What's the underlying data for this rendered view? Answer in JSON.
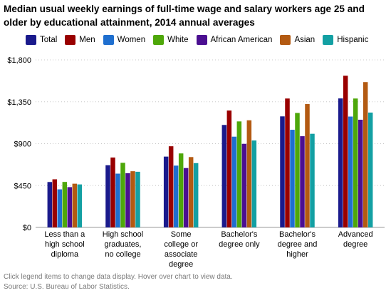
{
  "title": "Median usual weekly earnings of full-time wage and salary workers age 25 and older by educational attainment, 2014 annual averages",
  "chart_data": {
    "type": "bar",
    "title": "Median usual weekly earnings of full-time wage and salary workers age 25 and older by educational attainment, 2014 annual averages",
    "xlabel": "",
    "ylabel": "",
    "ylim": [
      0,
      1800
    ],
    "yticks": [
      0,
      450,
      900,
      1350,
      1800
    ],
    "ytick_labels": [
      "$0",
      "$450",
      "$900",
      "$1,350",
      "$1,800"
    ],
    "grid": true,
    "legend_position": "top",
    "categories": [
      [
        "Less than a",
        "high school",
        "diploma"
      ],
      [
        "High school",
        "graduates,",
        "no college"
      ],
      [
        "Some",
        "college or",
        "associate",
        "degree"
      ],
      [
        "Bachelor's",
        "degree only"
      ],
      [
        "Bachelor's",
        "degree and",
        "higher"
      ],
      [
        "Advanced",
        "degree"
      ]
    ],
    "series": [
      {
        "name": "Total",
        "color": "#1a1a8c",
        "values": [
          488,
          668,
          761,
          1101,
          1193,
          1386
        ]
      },
      {
        "name": "Men",
        "color": "#990000",
        "values": [
          517,
          751,
          872,
          1256,
          1385,
          1630
        ]
      },
      {
        "name": "Women",
        "color": "#1f6fcf",
        "values": [
          409,
          578,
          664,
          975,
          1049,
          1191
        ]
      },
      {
        "name": "White",
        "color": "#4ea70a",
        "values": [
          489,
          694,
          795,
          1139,
          1230,
          1385
        ]
      },
      {
        "name": "African American",
        "color": "#4b0f91",
        "values": [
          433,
          582,
          638,
          898,
          980,
          1157
        ]
      },
      {
        "name": "Asian",
        "color": "#b35a12",
        "values": [
          470,
          604,
          756,
          1151,
          1325,
          1561
        ]
      },
      {
        "name": "Hispanic",
        "color": "#13a0a3",
        "values": [
          462,
          598,
          691,
          934,
          1006,
          1234
        ]
      }
    ]
  },
  "footnote": {
    "note": "Click legend items to change data display. Hover over chart to view data.",
    "source": "Source: U.S. Bureau of Labor Statistics."
  }
}
